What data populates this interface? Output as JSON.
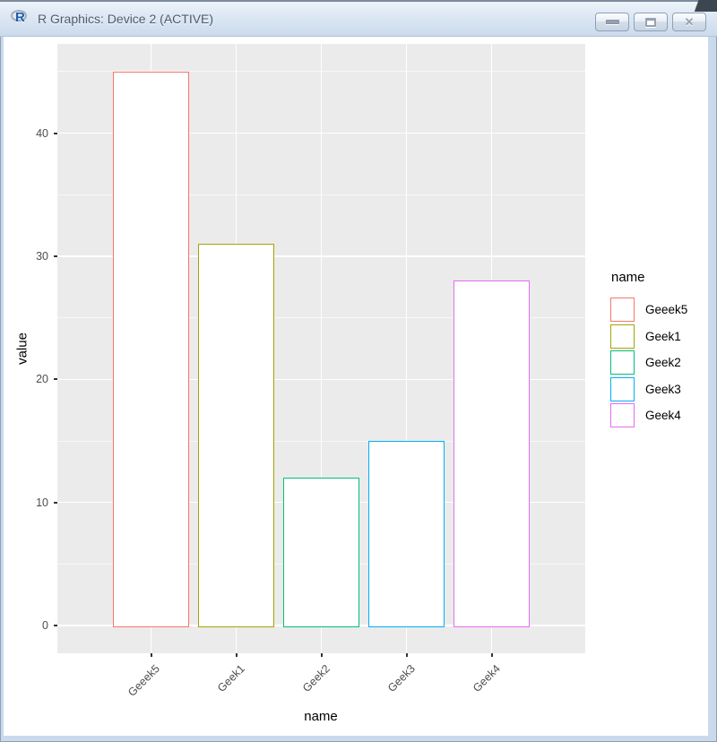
{
  "window": {
    "title": "R Graphics: Device 2 (ACTIVE)",
    "icon": "r-logo",
    "controls": {
      "minimize": "minimize",
      "maximize": "maximize",
      "close": "close"
    }
  },
  "chart_data": {
    "type": "bar",
    "title": "",
    "categories": [
      "Geeek5",
      "Geek1",
      "Geek2",
      "Geek3",
      "Geek4"
    ],
    "values": [
      45,
      31,
      12,
      15,
      28
    ],
    "bar_fill": "#FFFFFF",
    "bar_outline_colors": [
      "#F8766D",
      "#A3A500",
      "#00BF7D",
      "#00B0F6",
      "#E76BF3"
    ],
    "xlabel": "name",
    "ylabel": "value",
    "y_ticks": [
      0,
      10,
      20,
      30,
      40
    ],
    "y_minor_ticks": [
      5,
      15,
      25,
      35,
      45
    ],
    "ylim": [
      -2.25,
      47.25
    ],
    "panel_background": "#EBEBEB",
    "gridline_color": "#FFFFFF",
    "axis_text_color": "#4D4D4D",
    "legend": {
      "title": "name",
      "position": "right",
      "entries": [
        {
          "label": "Geeek5",
          "color": "#F8766D"
        },
        {
          "label": "Geek1",
          "color": "#A3A500"
        },
        {
          "label": "Geek2",
          "color": "#00BF7D"
        },
        {
          "label": "Geek3",
          "color": "#00B0F6"
        },
        {
          "label": "Geek4",
          "color": "#E76BF3"
        }
      ]
    }
  }
}
